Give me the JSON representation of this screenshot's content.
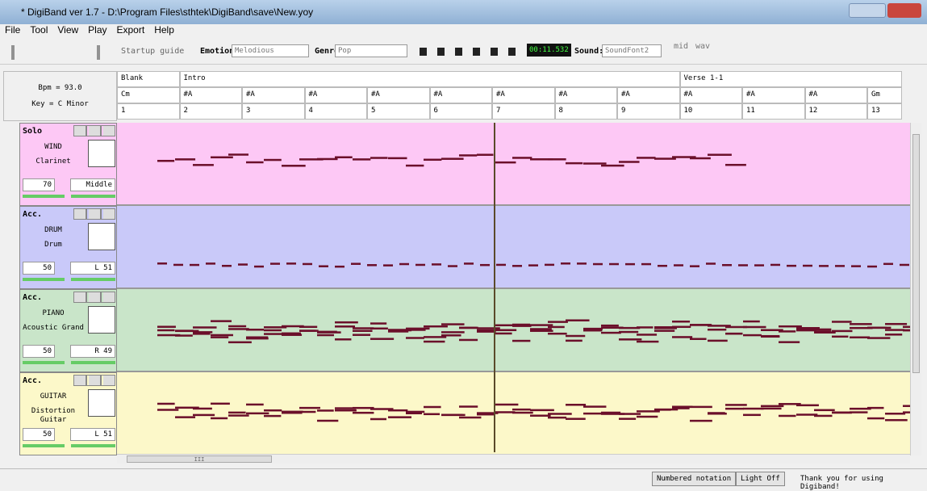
{
  "window": {
    "title": "* DigiBand ver 1.7  - D:\\Program Files\\sthtek\\DigiBand\\save\\New.yoy"
  },
  "menu": [
    "File",
    "Tool",
    "View",
    "Play",
    "Export",
    "Help"
  ],
  "toolbar": {
    "startup": "Startup guide",
    "emotion_label": "Emotion",
    "emotion": "Melodious",
    "genre_label": "Genre",
    "genre": "Pop",
    "time": "00:11.532",
    "sound_label": "Sound:",
    "sound": "SoundFont2",
    "mid": "mid",
    "wav": "wav"
  },
  "header": {
    "bpm": "Bpm = 93.0",
    "key": "Key =  C  Minor",
    "sections": [
      "Blank",
      "Intro",
      "Verse 1-1"
    ],
    "chords": [
      "Cm",
      "#A",
      "#A",
      "#A",
      "#A",
      "#A",
      "#A",
      "#A",
      "#A",
      "#A",
      "#A",
      "#A",
      "Gm"
    ],
    "measures": [
      "1",
      "2",
      "3",
      "4",
      "5",
      "6",
      "7",
      "8",
      "9",
      "10",
      "11",
      "12",
      "13"
    ]
  },
  "tracks": [
    {
      "role": "Solo",
      "category": "WIND",
      "instrument": "Clarinet",
      "volume": "70",
      "pan": "Middle"
    },
    {
      "role": "Acc.",
      "category": "DRUM",
      "instrument": "Drum",
      "volume": "50",
      "pan": "L  51"
    },
    {
      "role": "Acc.",
      "category": "PIANO",
      "instrument": "Acoustic Grand",
      "volume": "50",
      "pan": "R  49"
    },
    {
      "role": "Acc.",
      "category": "GUITAR",
      "instrument": "Distortion Guitar",
      "volume": "50",
      "pan": "L  51"
    }
  ],
  "scroll": "III",
  "status": {
    "numbered": "Numbered notation",
    "light": "Light Off",
    "message": "Thank you for using Digiband!"
  }
}
